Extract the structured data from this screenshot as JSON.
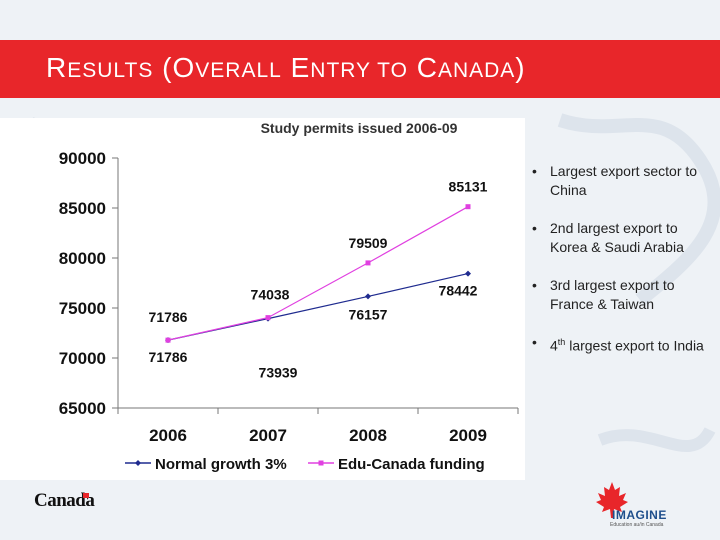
{
  "header": {
    "title_parts": [
      {
        "text": "R",
        "size": "big"
      },
      {
        "text": "ESULTS",
        "size": "small"
      },
      {
        "text": " (",
        "size": "big"
      },
      {
        "text": "O",
        "size": "big"
      },
      {
        "text": "VERALL",
        "size": "small"
      },
      {
        "text": " E",
        "size": "big"
      },
      {
        "text": "NTRY TO",
        "size": "small"
      },
      {
        "text": " C",
        "size": "big"
      },
      {
        "text": "ANADA",
        "size": "small"
      },
      {
        "text": ")",
        "size": "big"
      }
    ]
  },
  "colors": {
    "header_red": "#e8262a",
    "series_normal": "#1f2b8f",
    "series_edu": "#e040e0"
  },
  "chart_data": {
    "type": "line",
    "title": "Study permits issued 2006-09",
    "categories": [
      "2006",
      "2007",
      "2008",
      "2009"
    ],
    "ylim": [
      65000,
      90000
    ],
    "yticks": [
      "90000",
      "85000",
      "80000",
      "75000",
      "70000",
      "65000"
    ],
    "xlabel": "",
    "ylabel": "",
    "grid": false,
    "legend": "bottom",
    "series": [
      {
        "name": "Normal growth 3%",
        "values": [
          71786,
          73939,
          76157,
          78442
        ],
        "labels": [
          "71786",
          "73939",
          "76157",
          "78442"
        ]
      },
      {
        "name": "Edu-Canada funding",
        "values": [
          71786,
          74038,
          79509,
          85131
        ],
        "labels": [
          "71786",
          "74038",
          "79509",
          "85131"
        ]
      }
    ]
  },
  "bullets": [
    {
      "text": "Largest export sector to China"
    },
    {
      "text": "2nd largest export to Korea & Saudi Arabia"
    },
    {
      "text": "3rd largest export to France & Taiwan"
    },
    {
      "text": "largest export to India",
      "prefix": "4",
      "sup": "th"
    }
  ],
  "footer": {
    "canada_wordmark": "Canada",
    "imagine_logo": "IMAGINE",
    "imagine_tagline": "Education au/in Canada"
  }
}
